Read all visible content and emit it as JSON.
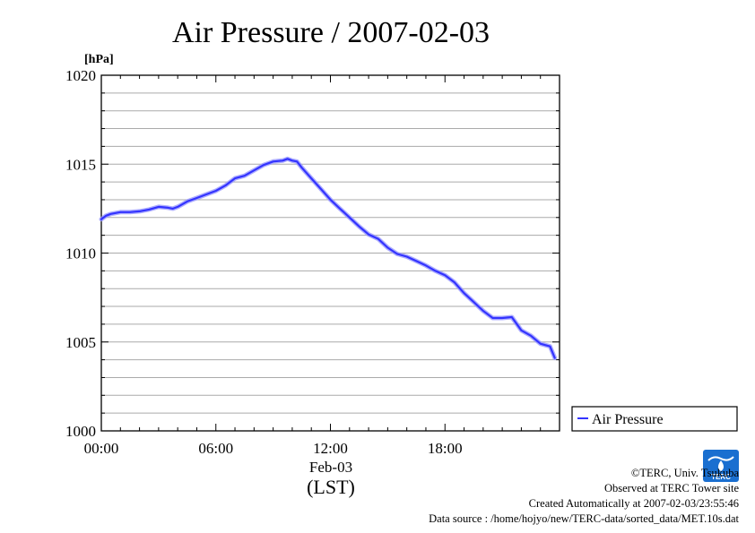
{
  "chart_data": {
    "type": "line",
    "title": "Air Pressure / 2007-02-03",
    "ylabel": "[hPa]",
    "xlabel": "Feb-03",
    "xlabel2": "(LST)",
    "ylim": [
      1000,
      1020
    ],
    "xlim": [
      0,
      24
    ],
    "yticks": [
      {
        "value": 1000,
        "label": "1000"
      },
      {
        "value": 1005,
        "label": "1005"
      },
      {
        "value": 1010,
        "label": "1010"
      },
      {
        "value": 1015,
        "label": "1015"
      },
      {
        "value": 1020,
        "label": "1020"
      }
    ],
    "xticks": [
      {
        "value": 0,
        "label": "00:00"
      },
      {
        "value": 6,
        "label": "06:00"
      },
      {
        "value": 12,
        "label": "12:00"
      },
      {
        "value": 18,
        "label": "18:00"
      }
    ],
    "minor_grid_step": 1,
    "grid": true,
    "legend_position": "right",
    "series": [
      {
        "name": "Air Pressure",
        "color": "#3333ff",
        "x": [
          0,
          0.25,
          0.5,
          0.75,
          1,
          1.5,
          2,
          2.5,
          3,
          3.5,
          3.75,
          4,
          4.5,
          5,
          5.5,
          6,
          6.5,
          7,
          7.5,
          8,
          8.5,
          9,
          9.5,
          9.75,
          10,
          10.25,
          10.5,
          11,
          11.5,
          12,
          12.5,
          13,
          13.5,
          14,
          14.5,
          15,
          15.5,
          16,
          16.5,
          17,
          17.5,
          18,
          18.5,
          19,
          19.5,
          20,
          20.5,
          21,
          21.5,
          22,
          22.5,
          23,
          23.5,
          23.75
        ],
        "y": [
          1011.9,
          1012.1,
          1012.2,
          1012.25,
          1012.3,
          1012.3,
          1012.35,
          1012.45,
          1012.6,
          1012.55,
          1012.5,
          1012.6,
          1012.9,
          1013.1,
          1013.3,
          1013.5,
          1013.8,
          1014.2,
          1014.35,
          1014.65,
          1014.95,
          1015.15,
          1015.2,
          1015.3,
          1015.2,
          1015.15,
          1014.8,
          1014.2,
          1013.6,
          1013.0,
          1012.5,
          1012.0,
          1011.5,
          1011.05,
          1010.8,
          1010.3,
          1009.95,
          1009.8,
          1009.55,
          1009.3,
          1009.0,
          1008.75,
          1008.35,
          1007.75,
          1007.25,
          1006.75,
          1006.35,
          1006.35,
          1006.4,
          1005.65,
          1005.35,
          1004.9,
          1004.75,
          1004.1
        ]
      }
    ]
  },
  "footer": {
    "copyright": "©TERC, Univ. Tsukuba",
    "observed": "Observed at TERC Tower site",
    "created": "Created Automatically at 2007-02-03/23:55:46",
    "source": "Data source : /home/hojyo/new/TERC-data/sorted_data/MET.10s.dat",
    "logo_text": "TERC"
  },
  "colors": {
    "line": "#3333ff",
    "grid": "#aaaaaa",
    "logo": "#1a6fd0"
  }
}
